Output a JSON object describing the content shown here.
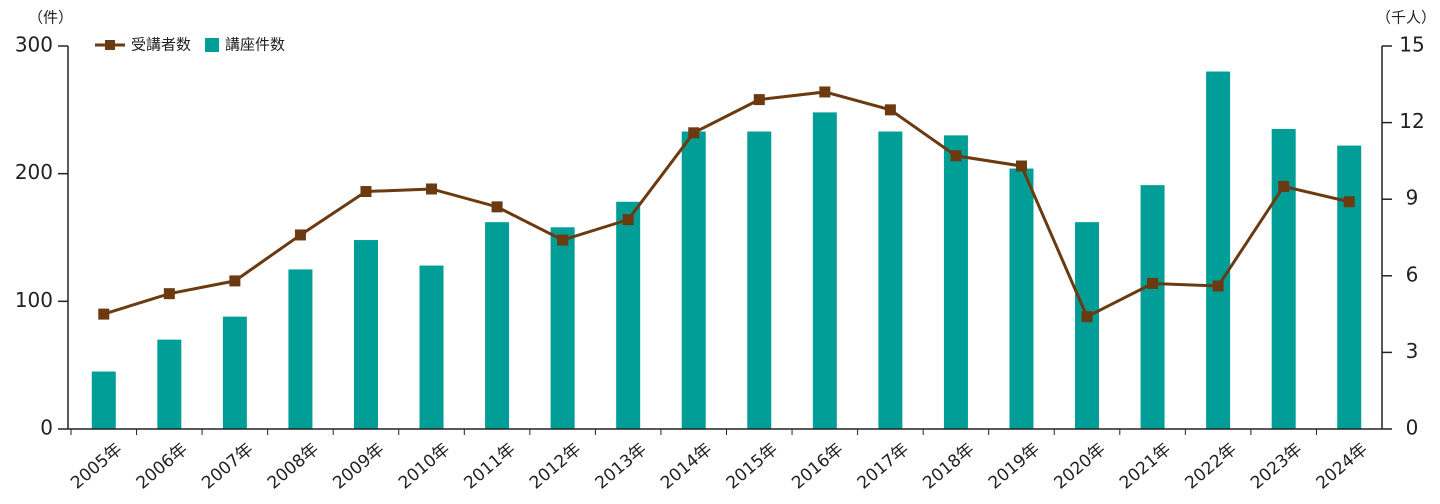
{
  "chart_data": {
    "type": "combo",
    "y_unit": "（件）",
    "y2_unit": "（千人）",
    "categories": [
      "2005年",
      "2006年",
      "2007年",
      "2008年",
      "2009年",
      "2010年",
      "2011年",
      "2012年",
      "2013年",
      "2014年",
      "2015年",
      "2016年",
      "2017年",
      "2018年",
      "2019年",
      "2020年",
      "2021年",
      "2022年",
      "2023年",
      "2024年"
    ],
    "series": [
      {
        "name": "受講者数",
        "type": "line",
        "axis": "y2",
        "color": "#6b3a10",
        "values": [
          4.5,
          5.3,
          5.8,
          7.6,
          9.3,
          9.4,
          8.7,
          7.4,
          8.2,
          11.6,
          12.9,
          13.2,
          12.5,
          10.7,
          10.3,
          4.4,
          5.7,
          5.6,
          9.5,
          8.9
        ]
      },
      {
        "name": "講座件数",
        "type": "bar",
        "axis": "y",
        "color": "#009e96",
        "values": [
          45,
          70,
          88,
          125,
          148,
          128,
          162,
          158,
          178,
          233,
          233,
          248,
          233,
          230,
          204,
          162,
          191,
          280,
          235,
          222
        ]
      }
    ],
    "ylim": [
      0,
      300
    ],
    "yticks": [
      0,
      100,
      200,
      300
    ],
    "y2lim": [
      0,
      15
    ],
    "y2ticks": [
      0,
      3,
      6,
      9,
      12,
      15
    ],
    "grid": false,
    "legend": "top-left"
  }
}
